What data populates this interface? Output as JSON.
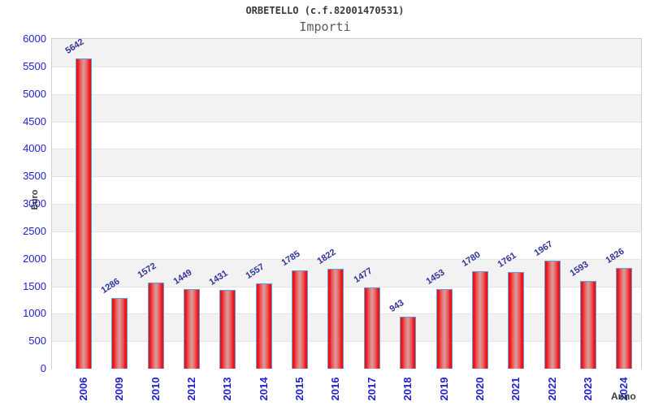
{
  "chart_data": {
    "type": "bar",
    "title": "ORBETELLO (c.f.82001470531)",
    "subtitle": "Importi",
    "xlabel": "Anno",
    "ylabel": "Euro",
    "categories": [
      "2006",
      "2009",
      "2010",
      "2012",
      "2013",
      "2014",
      "2015",
      "2016",
      "2017",
      "2018",
      "2019",
      "2020",
      "2021",
      "2022",
      "2023",
      "2024"
    ],
    "values": [
      5642,
      1286,
      1572,
      1449,
      1431,
      1557,
      1785,
      1822,
      1477,
      943,
      1453,
      1780,
      1761,
      1967,
      1593,
      1826
    ],
    "ylim": [
      0,
      6000
    ],
    "ytick_step": 500,
    "yticks": [
      0,
      500,
      1000,
      1500,
      2000,
      2500,
      3000,
      3500,
      4000,
      4500,
      5000,
      5500,
      6000
    ],
    "grid": "alternating-horizontal-bands",
    "legend": "none",
    "colors": {
      "bar_edge": "#e8141a",
      "bar_mid": "#ef5353",
      "bar_center": "#d89a9a",
      "bar_border": "#5ba0dd",
      "tick_label": "#2222cc",
      "value_label": "#333399",
      "axis_title": "#3a3a3a",
      "band_gray": "#f2f2f2",
      "band_white": "#ffffff",
      "plot_border": "#d0d0d0"
    }
  }
}
